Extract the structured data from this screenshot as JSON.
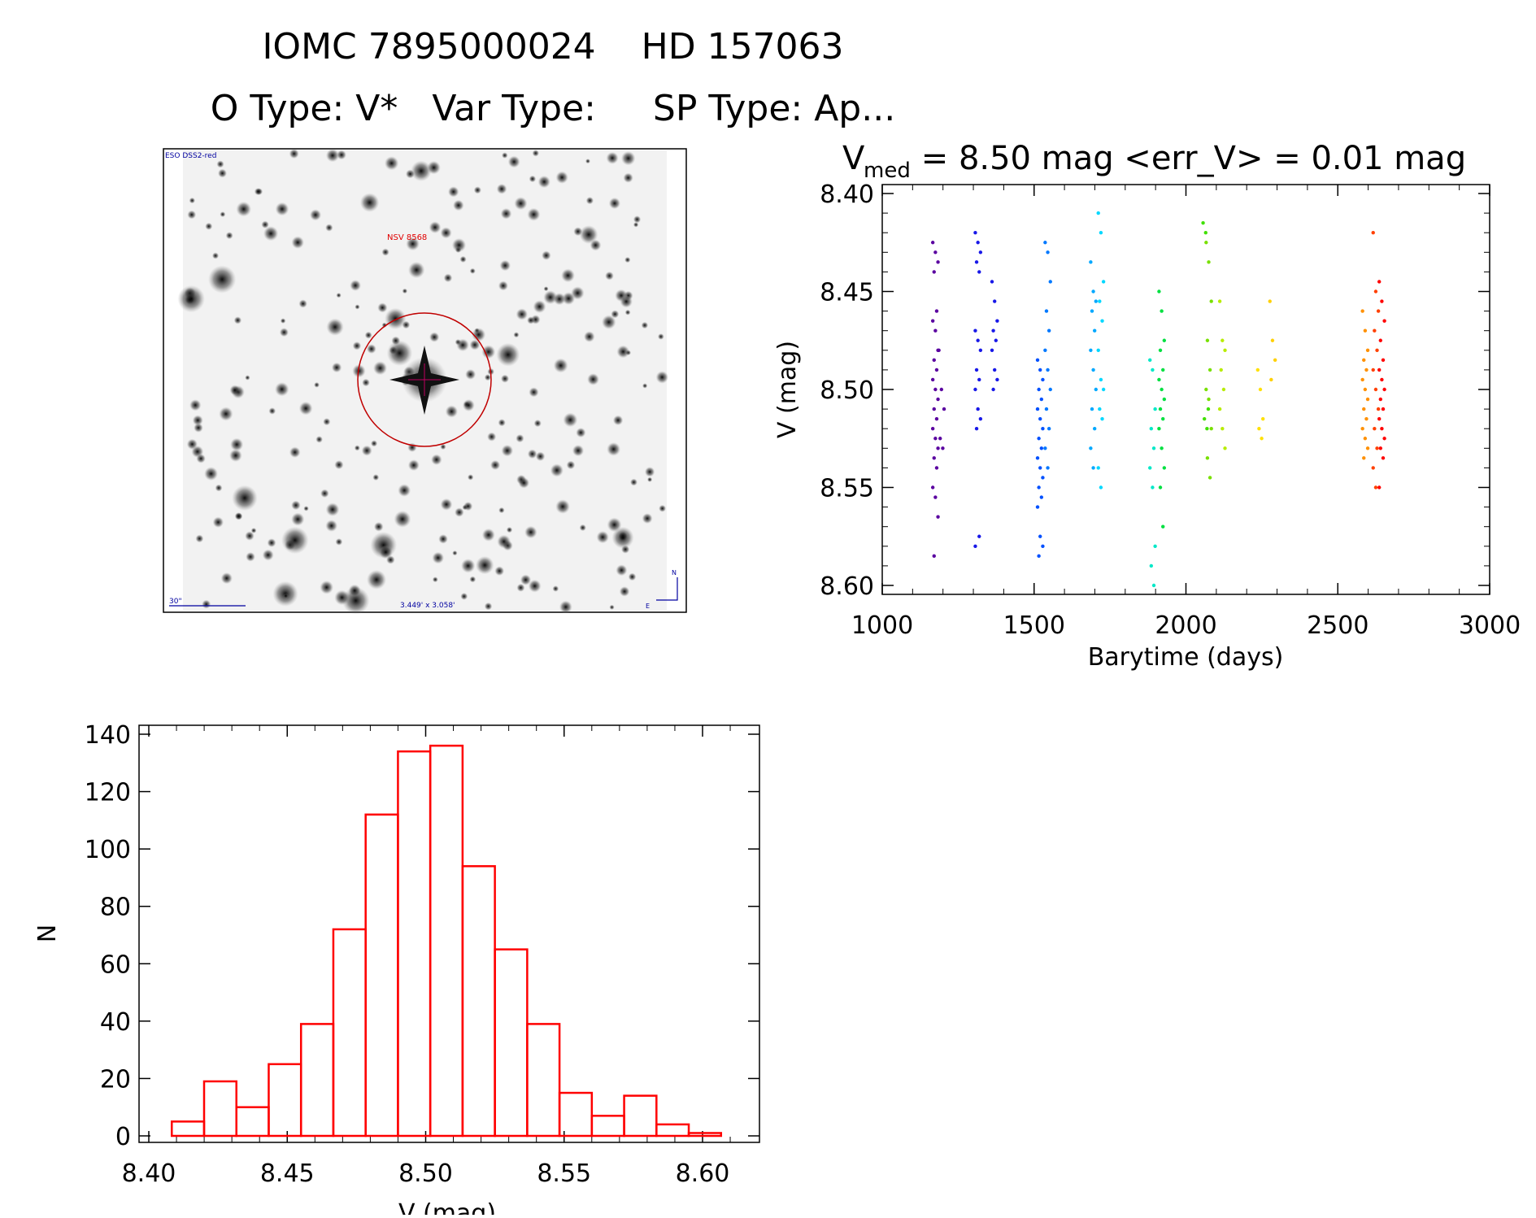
{
  "header": {
    "title": "IOMC 7895000024    HD 157063",
    "subtitle": "O Type: V*   Var Type:     SP Type: Ap..."
  },
  "image_panel": {
    "survey_label": "ESO DSS2-red",
    "target_label": "NSV 8568",
    "scale_label": "30\"",
    "field_label": "3.449' x 3.058'",
    "north_label": "N",
    "east_label": "E",
    "colors": {
      "labels": "#0000a0",
      "target": "#e00000"
    }
  },
  "chart_data": [
    {
      "type": "scatter",
      "title_prefix": "V",
      "title_sub": "med",
      "title_rest": " = 8.50 mag <err_V> = 0.01 mag",
      "xlabel": "Barytime (days)",
      "ylabel": "V (mag)",
      "xlim": [
        1000,
        3000
      ],
      "ylim": [
        8.4,
        8.6
      ],
      "y_inverted": true,
      "xticks": [
        "1000",
        "1500",
        "2000",
        "2500",
        "3000"
      ],
      "yticks": [
        "8.40",
        "8.45",
        "8.50",
        "8.55",
        "8.60"
      ],
      "color_scheme": "rainbow by time",
      "groups": [
        {
          "x": 1175,
          "color": "#5a00a0",
          "y": [
            8.425,
            8.43,
            8.435,
            8.44,
            8.46,
            8.465,
            8.47,
            8.48,
            8.485,
            8.49,
            8.495,
            8.5,
            8.505,
            8.51,
            8.515,
            8.52,
            8.525,
            8.53,
            8.535,
            8.54,
            8.55,
            8.555,
            8.565,
            8.585
          ]
        },
        {
          "x": 1195,
          "color": "#5a00a0",
          "y": [
            8.48,
            8.5,
            8.51,
            8.525,
            8.53
          ]
        },
        {
          "x": 1315,
          "color": "#1818e8",
          "y": [
            8.42,
            8.425,
            8.43,
            8.435,
            8.44,
            8.47,
            8.475,
            8.48,
            8.49,
            8.495,
            8.5,
            8.51,
            8.515,
            8.52,
            8.575,
            8.58
          ]
        },
        {
          "x": 1370,
          "color": "#1818e8",
          "y": [
            8.445,
            8.455,
            8.465,
            8.47,
            8.475,
            8.48,
            8.49,
            8.495,
            8.5
          ]
        },
        {
          "x": 1520,
          "color": "#0050ff",
          "y": [
            8.485,
            8.49,
            8.495,
            8.5,
            8.505,
            8.51,
            8.515,
            8.52,
            8.525,
            8.53,
            8.535,
            8.54,
            8.545,
            8.55,
            8.555,
            8.56,
            8.575,
            8.58,
            8.585
          ]
        },
        {
          "x": 1545,
          "color": "#0078ff",
          "y": [
            8.425,
            8.43,
            8.445,
            8.46,
            8.47,
            8.48,
            8.49,
            8.5,
            8.51,
            8.52,
            8.53,
            8.54
          ]
        },
        {
          "x": 1695,
          "color": "#00a8ff",
          "y": [
            8.435,
            8.45,
            8.455,
            8.46,
            8.47,
            8.48,
            8.49,
            8.5,
            8.51,
            8.52,
            8.53,
            8.54
          ]
        },
        {
          "x": 1720,
          "color": "#00d8ff",
          "y": [
            8.41,
            8.42,
            8.445,
            8.455,
            8.465,
            8.48,
            8.495,
            8.5,
            8.51,
            8.515,
            8.54,
            8.55
          ]
        },
        {
          "x": 1890,
          "color": "#00e8c8",
          "y": [
            8.485,
            8.49,
            8.51,
            8.52,
            8.53,
            8.54,
            8.55,
            8.58,
            8.59,
            8.6
          ]
        },
        {
          "x": 1920,
          "color": "#00e040",
          "y": [
            8.45,
            8.46,
            8.475,
            8.48,
            8.49,
            8.495,
            8.5,
            8.505,
            8.51,
            8.515,
            8.52,
            8.53,
            8.54,
            8.55,
            8.57
          ]
        },
        {
          "x": 2065,
          "color": "#40e000",
          "y": [
            8.415,
            8.42,
            8.51,
            8.515,
            8.52
          ]
        },
        {
          "x": 2075,
          "color": "#78e000",
          "y": [
            8.425,
            8.435,
            8.455,
            8.475,
            8.49,
            8.5,
            8.505,
            8.52,
            8.535,
            8.545
          ]
        },
        {
          "x": 2120,
          "color": "#b8ec00",
          "y": [
            8.455,
            8.475,
            8.48,
            8.49,
            8.5,
            8.51,
            8.52,
            8.53
          ]
        },
        {
          "x": 2245,
          "color": "#ffe000",
          "y": [
            8.49,
            8.5,
            8.515,
            8.52,
            8.525
          ]
        },
        {
          "x": 2285,
          "color": "#ffd000",
          "y": [
            8.455,
            8.475,
            8.485,
            8.495
          ]
        },
        {
          "x": 2590,
          "color": "#ff9000",
          "y": [
            8.46,
            8.47,
            8.48,
            8.485,
            8.49,
            8.495,
            8.5,
            8.505,
            8.51,
            8.515,
            8.52,
            8.525,
            8.53,
            8.535
          ]
        },
        {
          "x": 2625,
          "color": "#ff4000",
          "y": [
            8.42,
            8.45,
            8.46,
            8.47,
            8.48,
            8.49,
            8.5,
            8.51,
            8.52,
            8.53,
            8.54,
            8.55
          ]
        },
        {
          "x": 2645,
          "color": "#ff0000",
          "y": [
            8.445,
            8.455,
            8.465,
            8.475,
            8.485,
            8.49,
            8.495,
            8.5,
            8.505,
            8.51,
            8.515,
            8.52,
            8.525,
            8.53,
            8.535,
            8.55
          ]
        }
      ]
    },
    {
      "type": "bar",
      "style": "histogram outline",
      "xlabel": "V (mag)",
      "ylabel": "N",
      "xlim": [
        8.392,
        8.622
      ],
      "ylim": [
        0,
        140
      ],
      "xticks": [
        "8.40",
        "8.45",
        "8.50",
        "8.55",
        "8.60"
      ],
      "yticks": [
        "0",
        "20",
        "40",
        "60",
        "80",
        "100",
        "120",
        "140"
      ],
      "bin_start": 8.4083,
      "bin_width": 0.01167,
      "values": [
        5,
        19,
        10,
        25,
        39,
        72,
        112,
        134,
        136,
        94,
        65,
        39,
        15,
        7,
        14,
        4,
        1
      ],
      "color": "#ff0000"
    }
  ]
}
